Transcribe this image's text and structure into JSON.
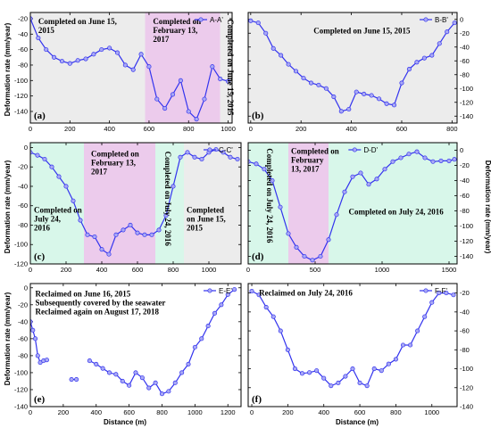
{
  "x_axis_label": "Distance (m)",
  "y_axis_label": "Deformation rate (mm/year)",
  "colors": {
    "series": "#3333ee",
    "marker_fill": "#a9a9f5",
    "gray_zone": "#ececec",
    "pink_zone": "#eccbec",
    "green_zone": "#d8f7ea"
  },
  "chart_data": [
    {
      "type": "line",
      "id": "a",
      "panel_label": "(a)",
      "legend": "A-A'",
      "legend_position": "top-right",
      "y_axis_side": "left",
      "xlim": [
        0,
        1020
      ],
      "ylim": [
        -155,
        -12
      ],
      "xticks": [
        0,
        200,
        400,
        600,
        800,
        1000
      ],
      "yticks": [
        -20,
        -40,
        -60,
        -80,
        -100,
        -120,
        -140
      ],
      "zones": [
        {
          "x0": 0,
          "x1": 580,
          "color": "gray"
        },
        {
          "x0": 580,
          "x1": 960,
          "color": "pink"
        },
        {
          "x0": 960,
          "x1": 1020,
          "color": "gray"
        }
      ],
      "annotations": [
        {
          "text": [
            "Completed on June 15,",
            "2015"
          ],
          "x": 40,
          "y": -18
        },
        {
          "text": [
            "Completed on",
            "February 13,",
            "2017"
          ],
          "x": 620,
          "y": -18
        },
        {
          "text": [
            "Completed on June 15, 2015"
          ],
          "x": 985,
          "y": -18,
          "vertical": true
        }
      ],
      "x": [
        0,
        40,
        80,
        120,
        160,
        200,
        240,
        280,
        320,
        360,
        400,
        440,
        480,
        520,
        560,
        600,
        640,
        680,
        720,
        760,
        800,
        840,
        880,
        920,
        960,
        1000
      ],
      "y": [
        -20,
        -45,
        -60,
        -70,
        -75,
        -78,
        -74,
        -72,
        -66,
        -60,
        -58,
        -64,
        -80,
        -86,
        -66,
        -82,
        -124,
        -136,
        -118,
        -100,
        -140,
        -150,
        -124,
        -82,
        -98,
        -101
      ]
    },
    {
      "type": "line",
      "id": "b",
      "panel_label": "(b)",
      "legend": "B-B'",
      "legend_position": "top-right",
      "y_axis_side": "right",
      "xlim": [
        -10,
        820
      ],
      "ylim": [
        -150,
        10
      ],
      "xticks": [
        0,
        200,
        400,
        600,
        800
      ],
      "yticks": [
        0,
        -20,
        -40,
        -60,
        -80,
        -100,
        -120,
        -140
      ],
      "zones": [
        {
          "x0": -10,
          "x1": 820,
          "color": "gray"
        }
      ],
      "annotations": [
        {
          "text": [
            "Completed on June 15, 2015"
          ],
          "x": 250,
          "y": -10
        }
      ],
      "x": [
        0,
        30,
        60,
        90,
        120,
        150,
        180,
        210,
        240,
        270,
        300,
        330,
        360,
        390,
        420,
        450,
        480,
        510,
        540,
        570,
        600,
        630,
        660,
        690,
        720,
        750,
        780,
        810
      ],
      "y": [
        -2,
        -5,
        -20,
        -42,
        -52,
        -65,
        -75,
        -85,
        -92,
        -95,
        -100,
        -112,
        -133,
        -130,
        -105,
        -108,
        -110,
        -115,
        -122,
        -124,
        -92,
        -72,
        -62,
        -56,
        -52,
        -35,
        -18,
        -5
      ]
    },
    {
      "type": "line",
      "id": "c",
      "panel_label": "(c)",
      "legend": "C-C'",
      "legend_position": "top-right",
      "y_axis_side": "left",
      "xlim": [
        0,
        1180
      ],
      "ylim": [
        -120,
        5
      ],
      "xticks": [
        0,
        200,
        400,
        600,
        800,
        1000
      ],
      "yticks": [
        0,
        -20,
        -40,
        -60,
        -80,
        -100,
        -120
      ],
      "zones": [
        {
          "x0": 0,
          "x1": 300,
          "color": "green"
        },
        {
          "x0": 300,
          "x1": 700,
          "color": "pink"
        },
        {
          "x0": 700,
          "x1": 860,
          "color": "green"
        },
        {
          "x0": 860,
          "x1": 1180,
          "color": "gray"
        }
      ],
      "annotations": [
        {
          "text": [
            "Completed on",
            "February 13,",
            "2017"
          ],
          "x": 340,
          "y": -2
        },
        {
          "text": [
            "Completed on July 24, 2016"
          ],
          "x": 740,
          "y": -2,
          "vertical": true
        },
        {
          "text": [
            "Completed",
            "on June 15,",
            "2015"
          ],
          "x": 875,
          "y": -60
        },
        {
          "text": [
            "Completed on",
            "July 24,",
            "2016"
          ],
          "x": 20,
          "y": -60
        }
      ],
      "x": [
        0,
        40,
        80,
        120,
        160,
        200,
        240,
        280,
        320,
        360,
        400,
        440,
        480,
        520,
        560,
        600,
        640,
        680,
        720,
        760,
        800,
        840,
        880,
        920,
        960,
        1000,
        1040,
        1080,
        1120,
        1160
      ],
      "y": [
        -5,
        -8,
        -12,
        -20,
        -30,
        -40,
        -55,
        -75,
        -90,
        -92,
        -105,
        -110,
        -90,
        -85,
        -80,
        -88,
        -90,
        -90,
        -85,
        -70,
        -40,
        -10,
        -5,
        -10,
        -12,
        -5,
        -2,
        -5,
        -10,
        -12
      ]
    },
    {
      "type": "line",
      "id": "d",
      "panel_label": "(d)",
      "legend": "D-D'",
      "legend_position": "top-center",
      "y_axis_side": "right",
      "xlim": [
        0,
        1560
      ],
      "ylim": [
        -150,
        10
      ],
      "xticks": [
        0,
        500,
        1000,
        1500
      ],
      "yticks": [
        0,
        -20,
        -40,
        -60,
        -80,
        -100,
        -120,
        -140
      ],
      "zones": [
        {
          "x0": 0,
          "x1": 300,
          "color": "green"
        },
        {
          "x0": 300,
          "x1": 600,
          "color": "pink"
        },
        {
          "x0": 600,
          "x1": 1560,
          "color": "green"
        }
      ],
      "annotations": [
        {
          "text": [
            "Completed on July 24, 2016"
          ],
          "x": 120,
          "y": 5,
          "vertical": true
        },
        {
          "text": [
            "Completed on",
            "February",
            "13, 2017"
          ],
          "x": 320,
          "y": 5
        },
        {
          "text": [
            "Completed on July 24, 2016"
          ],
          "x": 750,
          "y": -75
        }
      ],
      "x": [
        0,
        60,
        120,
        180,
        240,
        300,
        360,
        420,
        480,
        540,
        600,
        660,
        720,
        780,
        840,
        900,
        960,
        1020,
        1080,
        1140,
        1200,
        1260,
        1320,
        1380,
        1440,
        1500,
        1540
      ],
      "y": [
        -15,
        -18,
        -25,
        -40,
        -75,
        -110,
        -128,
        -140,
        -145,
        -140,
        -118,
        -85,
        -55,
        -35,
        -30,
        -45,
        -38,
        -25,
        -15,
        -10,
        -5,
        -2,
        -10,
        -15,
        -14,
        -14,
        -12
      ]
    },
    {
      "type": "line",
      "id": "e",
      "panel_label": "(e)",
      "legend": "E-E'",
      "legend_position": "top-right",
      "y_axis_side": "left",
      "xlim": [
        0,
        1280
      ],
      "ylim": [
        -140,
        5
      ],
      "xticks": [
        0,
        200,
        400,
        600,
        800,
        1000,
        1200
      ],
      "yticks": [
        0,
        -20,
        -40,
        -60,
        -80,
        -100,
        -120,
        -140
      ],
      "zones": [],
      "annotations": [
        {
          "text": [
            "Reclaimed on June 16, 2015",
            "Subsequently covered by the seawater",
            "Reclaimed again on August 17, 2018"
          ],
          "x": 30,
          "y": -2
        }
      ],
      "segments": [
        {
          "x": [
            0,
            15,
            30,
            45,
            60,
            80,
            100
          ],
          "y": [
            -40,
            -50,
            -60,
            -80,
            -88,
            -86,
            -85
          ]
        },
        {
          "x": [
            250,
            280
          ],
          "y": [
            -108,
            -108
          ]
        },
        {
          "x": [
            360,
            400,
            440,
            480,
            520,
            560,
            600,
            640,
            680,
            720,
            760,
            800,
            840,
            880,
            920,
            960,
            1000,
            1040,
            1080,
            1120,
            1160,
            1200,
            1240
          ],
          "y": [
            -86,
            -90,
            -95,
            -100,
            -102,
            -110,
            -115,
            -100,
            -106,
            -118,
            -112,
            -125,
            -122,
            -112,
            -100,
            -90,
            -70,
            -60,
            -45,
            -30,
            -20,
            -8,
            -2
          ]
        }
      ]
    },
    {
      "type": "line",
      "id": "f",
      "panel_label": "(f)",
      "legend": "F-F'",
      "legend_position": "top-right",
      "y_axis_side": "right",
      "xlim": [
        -20,
        1140
      ],
      "ylim": [
        -140,
        -10
      ],
      "xticks": [
        0,
        200,
        400,
        600,
        800,
        1000
      ],
      "yticks": [
        -20,
        -40,
        -60,
        -80,
        -100,
        -120,
        -140
      ],
      "zones": [],
      "annotations": [
        {
          "text": [
            "Reclaimed on July 24, 2016"
          ],
          "x": 40,
          "y": -15
        }
      ],
      "x": [
        0,
        40,
        80,
        120,
        160,
        200,
        240,
        280,
        320,
        360,
        400,
        440,
        480,
        520,
        560,
        600,
        640,
        680,
        720,
        760,
        800,
        840,
        880,
        920,
        960,
        1000,
        1040,
        1080,
        1120
      ],
      "y": [
        -18,
        -22,
        -35,
        -45,
        -60,
        -80,
        -100,
        -105,
        -104,
        -102,
        -110,
        -118,
        -115,
        -108,
        -100,
        -115,
        -118,
        -100,
        -102,
        -95,
        -90,
        -75,
        -75,
        -60,
        -45,
        -30,
        -20,
        -20,
        -22
      ]
    }
  ]
}
